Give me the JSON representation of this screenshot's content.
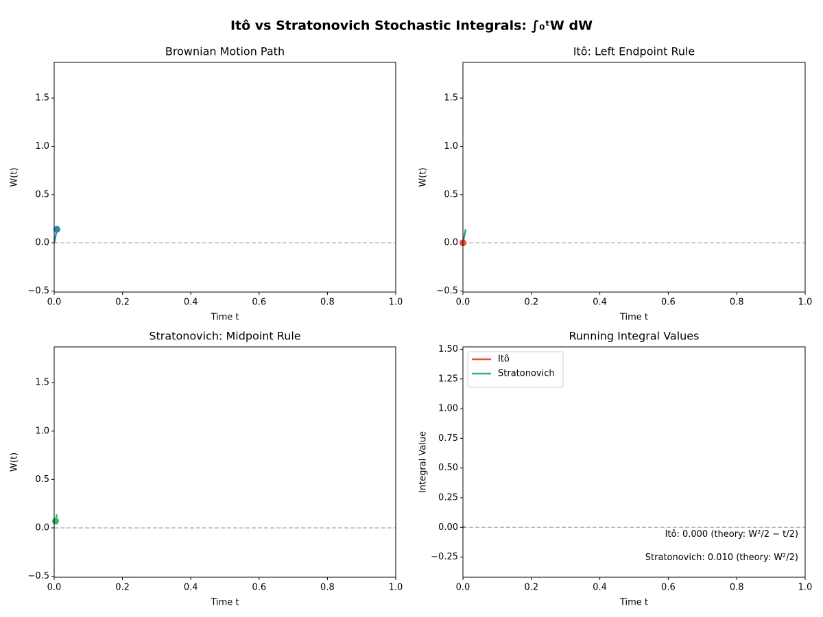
{
  "title": "Itô vs Stratonovich Stochastic Integrals: ∫₀ᵗW dW",
  "chart_data": [
    {
      "type": "line",
      "title": "Brownian Motion Path",
      "xlabel": "Time t",
      "ylabel": "W(t)",
      "xlim": [
        0,
        1
      ],
      "ylim": [
        -0.51,
        1.87
      ],
      "xticks": [
        {
          "value": 0,
          "label": "0.0"
        },
        0.2,
        0.4,
        0.6,
        0.8,
        {
          "value": 1,
          "label": "1.0"
        }
      ],
      "yticks": [
        {
          "value": -0.5,
          "label": "−0.5"
        },
        {
          "value": 0,
          "label": "0.0"
        },
        0.5,
        {
          "value": 1,
          "label": "1.0"
        },
        1.5
      ],
      "hline": 0,
      "series": [
        {
          "color": "#2e86ab",
          "style": "line",
          "x": [
            0,
            0.008
          ],
          "values": [
            0,
            0.14
          ]
        },
        {
          "color": "#2e86ab",
          "style": "point",
          "x": [
            0.008
          ],
          "values": [
            0.14
          ]
        }
      ]
    },
    {
      "type": "line",
      "title": "Itô: Left Endpoint Rule",
      "xlabel": "Time t",
      "ylabel": "W(t)",
      "xlim": [
        0,
        1
      ],
      "ylim": [
        -0.51,
        1.87
      ],
      "xticks": [
        {
          "value": 0,
          "label": "0.0"
        },
        0.2,
        0.4,
        0.6,
        0.8,
        {
          "value": 1,
          "label": "1.0"
        }
      ],
      "yticks": [
        {
          "value": -0.5,
          "label": "−0.5"
        },
        {
          "value": 0,
          "label": "0.0"
        },
        0.5,
        {
          "value": 1,
          "label": "1.0"
        },
        1.5
      ],
      "hline": 0,
      "series": [
        {
          "color": "#2a9d8f",
          "style": "line",
          "x": [
            0,
            0.008
          ],
          "values": [
            0,
            0.14
          ]
        },
        {
          "color": "#e74c3c",
          "style": "point",
          "x": [
            0
          ],
          "values": [
            0
          ]
        }
      ]
    },
    {
      "type": "line",
      "title": "Stratonovich: Midpoint Rule",
      "xlabel": "Time t",
      "ylabel": "W(t)",
      "xlim": [
        0,
        1
      ],
      "ylim": [
        -0.51,
        1.87
      ],
      "xticks": [
        {
          "value": 0,
          "label": "0.0"
        },
        0.2,
        0.4,
        0.6,
        0.8,
        {
          "value": 1,
          "label": "1.0"
        }
      ],
      "yticks": [
        {
          "value": -0.5,
          "label": "−0.5"
        },
        {
          "value": 0,
          "label": "0.0"
        },
        0.5,
        {
          "value": 1,
          "label": "1.0"
        },
        1.5
      ],
      "hline": 0,
      "series": [
        {
          "color": "#3cb371",
          "style": "line",
          "x": [
            0.004,
            0.008
          ],
          "values": [
            0.07,
            0.14
          ]
        },
        {
          "color": "#3cb371",
          "style": "point",
          "x": [
            0.004
          ],
          "values": [
            0.07
          ]
        }
      ]
    },
    {
      "type": "line",
      "title": "Running Integral Values",
      "xlabel": "Time t",
      "ylabel": "Integral Value",
      "xlim": [
        0,
        1
      ],
      "ylim": [
        -0.42,
        1.52
      ],
      "xticks": [
        {
          "value": 0,
          "label": "0.0"
        },
        0.2,
        0.4,
        0.6,
        0.8,
        {
          "value": 1,
          "label": "1.0"
        }
      ],
      "yticks": [
        {
          "value": -0.25,
          "label": "−0.25"
        },
        {
          "value": 0,
          "label": "0.00"
        },
        {
          "value": 0.25,
          "label": "0.25"
        },
        {
          "value": 0.5,
          "label": "0.50"
        },
        {
          "value": 0.75,
          "label": "0.75"
        },
        {
          "value": 1,
          "label": "1.00"
        },
        {
          "value": 1.25,
          "label": "1.25"
        },
        {
          "value": 1.5,
          "label": "1.50"
        }
      ],
      "hline": 0,
      "legend": "upper left",
      "series": [
        {
          "name": "Itô",
          "color": "#e74c3c",
          "style": "line",
          "x": [
            0,
            0.005
          ],
          "values": [
            0,
            0
          ]
        },
        {
          "name": "Stratonovich",
          "color": "#3cb371",
          "style": "line",
          "x": [
            0,
            0.005
          ],
          "values": [
            0,
            0.01
          ]
        }
      ],
      "annotations": [
        {
          "text": "Itô: 0.000  (theory: W²/2 − t/2)",
          "color": "#e74c3c"
        },
        {
          "text": "Stratonovich: 0.010  (theory: W²/2)",
          "color": "#3cb371"
        }
      ]
    }
  ]
}
